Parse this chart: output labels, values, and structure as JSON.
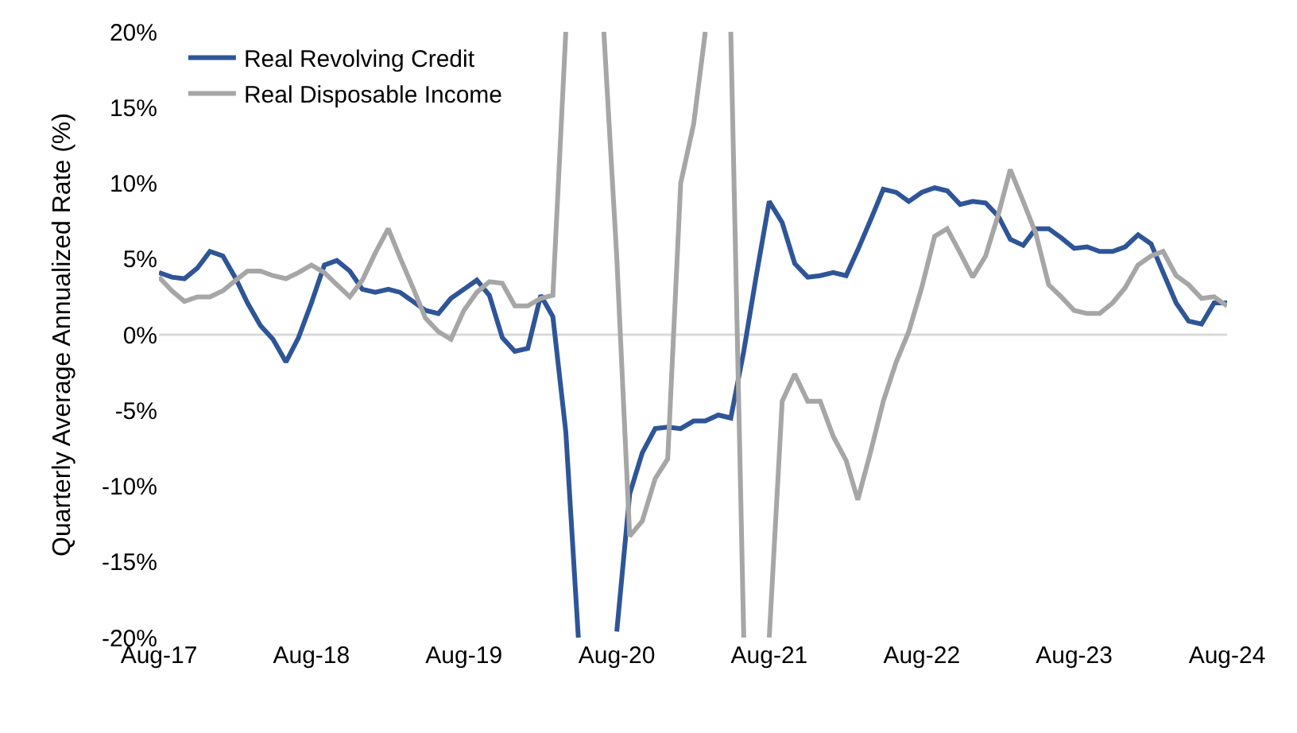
{
  "chart_data": {
    "type": "line",
    "ylabel": "Quarterly Average Annualized Rate (%)",
    "xlim": [
      "2017-08",
      "2024-08"
    ],
    "xticks": [
      {
        "value": "2017-08",
        "label": "Aug-17"
      },
      {
        "value": "2018-08",
        "label": "Aug-18"
      },
      {
        "value": "2019-08",
        "label": "Aug-19"
      },
      {
        "value": "2020-08",
        "label": "Aug-20"
      },
      {
        "value": "2021-08",
        "label": "Aug-21"
      },
      {
        "value": "2022-08",
        "label": "Aug-22"
      },
      {
        "value": "2023-08",
        "label": "Aug-23"
      },
      {
        "value": "2024-08",
        "label": "Aug-24"
      }
    ],
    "ylim": [
      -20,
      20
    ],
    "yticks": [
      {
        "value": -20,
        "label": "-20%"
      },
      {
        "value": -15,
        "label": "-15%"
      },
      {
        "value": -10,
        "label": "-10%"
      },
      {
        "value": -5,
        "label": "-5%"
      },
      {
        "value": 0,
        "label": "0%"
      },
      {
        "value": 5,
        "label": "5%"
      },
      {
        "value": 10,
        "label": "10%"
      },
      {
        "value": 15,
        "label": "15%"
      },
      {
        "value": 20,
        "label": "20%"
      }
    ],
    "x": [
      "2017-08",
      "2017-09",
      "2017-10",
      "2017-11",
      "2017-12",
      "2018-01",
      "2018-02",
      "2018-03",
      "2018-04",
      "2018-05",
      "2018-06",
      "2018-07",
      "2018-08",
      "2018-09",
      "2018-10",
      "2018-11",
      "2018-12",
      "2019-01",
      "2019-02",
      "2019-03",
      "2019-04",
      "2019-05",
      "2019-06",
      "2019-07",
      "2019-08",
      "2019-09",
      "2019-10",
      "2019-11",
      "2019-12",
      "2020-01",
      "2020-02",
      "2020-03",
      "2020-04",
      "2020-05",
      "2020-06",
      "2020-07",
      "2020-08",
      "2020-09",
      "2020-10",
      "2020-11",
      "2020-12",
      "2021-01",
      "2021-02",
      "2021-03",
      "2021-04",
      "2021-05",
      "2021-06",
      "2021-07",
      "2021-08",
      "2021-09",
      "2021-10",
      "2021-11",
      "2021-12",
      "2022-01",
      "2022-02",
      "2022-03",
      "2022-04",
      "2022-05",
      "2022-06",
      "2022-07",
      "2022-08",
      "2022-09",
      "2022-10",
      "2022-11",
      "2022-12",
      "2023-01",
      "2023-02",
      "2023-03",
      "2023-04",
      "2023-05",
      "2023-06",
      "2023-07",
      "2023-08",
      "2023-09",
      "2023-10",
      "2023-11",
      "2023-12",
      "2024-01",
      "2024-02",
      "2024-03",
      "2024-04",
      "2024-05",
      "2024-06",
      "2024-07",
      "2024-08"
    ],
    "series": [
      {
        "name": "Real Revolving Credit",
        "color": "#2e5597",
        "values": [
          4.1,
          3.8,
          3.7,
          4.4,
          5.5,
          5.2,
          3.7,
          2.1,
          0.6,
          -0.3,
          -1.8,
          -0.2,
          2.1,
          4.6,
          4.9,
          4.2,
          3.0,
          2.8,
          3.0,
          2.8,
          2.2,
          1.6,
          1.4,
          2.4,
          3.0,
          3.6,
          2.6,
          -0.2,
          -1.1,
          -0.9,
          2.6,
          1.2,
          -6.4,
          -20,
          null,
          null,
          -19.6,
          -10.5,
          -7.8,
          -6.2,
          -6.1,
          -6.2,
          -5.7,
          -5.7,
          -5.3,
          -5.5,
          -1.1,
          3.9,
          8.8,
          7.4,
          4.7,
          3.8,
          3.9,
          4.1,
          3.9,
          5.6,
          7.6,
          9.6,
          9.4,
          8.8,
          9.4,
          9.7,
          9.5,
          8.6,
          8.8,
          8.7,
          7.8,
          6.3,
          5.9,
          7.0,
          7.0,
          6.4,
          5.7,
          5.8,
          5.5,
          5.5,
          5.8,
          6.6,
          6.0,
          4.1,
          2.1,
          0.9,
          0.7,
          2.1,
          2.1
        ]
      },
      {
        "name": "Real Disposable Income",
        "color": "#a6a6a6",
        "values": [
          3.8,
          2.9,
          2.2,
          2.5,
          2.5,
          2.9,
          3.6,
          4.2,
          4.2,
          3.9,
          3.7,
          4.1,
          4.6,
          4.1,
          3.3,
          2.5,
          3.6,
          5.4,
          7.0,
          5.1,
          3.1,
          1.1,
          0.2,
          -0.3,
          1.6,
          2.8,
          3.5,
          3.4,
          1.9,
          1.9,
          2.4,
          2.6,
          20,
          null,
          null,
          20,
          5.1,
          -13.3,
          -12.3,
          -9.5,
          -8.2,
          10.0,
          13.9,
          20,
          null,
          20,
          -20,
          null,
          -20,
          -4.4,
          -2.6,
          -4.4,
          -4.4,
          -6.7,
          -8.3,
          -10.9,
          -7.7,
          -4.4,
          -1.8,
          0.2,
          3.1,
          6.5,
          7.0,
          5.4,
          3.8,
          5.2,
          8.0,
          10.9,
          8.8,
          6.7,
          3.3,
          2.5,
          1.6,
          1.4,
          1.4,
          2.1,
          3.1,
          4.6,
          5.2,
          5.5,
          3.9,
          3.3,
          2.4,
          2.5,
          1.9
        ]
      }
    ],
    "ref_lines": [
      {
        "axis": "y",
        "value": 0,
        "color": "#d9d9d9"
      }
    ],
    "legend": "top left",
    "grid": false
  }
}
